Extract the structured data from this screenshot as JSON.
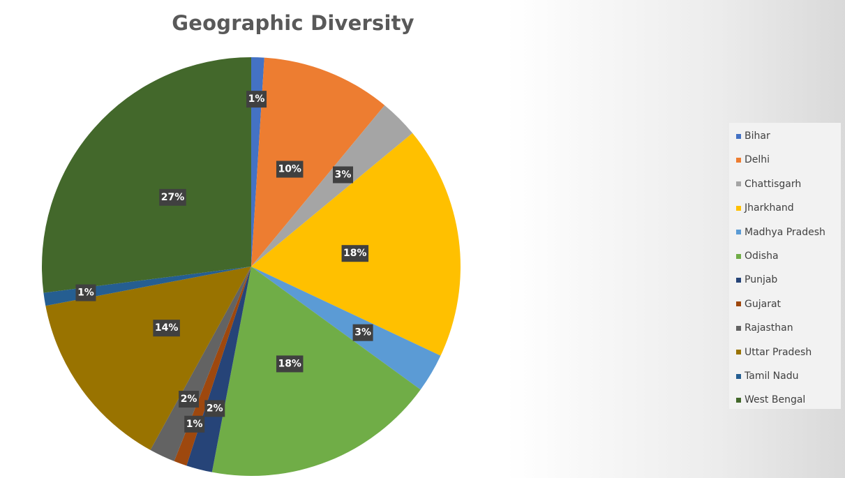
{
  "chart_data": {
    "type": "pie",
    "title": "Geographic Diversity",
    "legend_position": "right",
    "slices": [
      {
        "label": "Bihar",
        "value": 1,
        "display": "1%",
        "color": "#4472C4"
      },
      {
        "label": "Delhi",
        "value": 10,
        "display": "10%",
        "color": "#ED7D31"
      },
      {
        "label": "Chattisgarh",
        "value": 3,
        "display": "3%",
        "color": "#A5A5A5"
      },
      {
        "label": "Jharkhand",
        "value": 18,
        "display": "18%",
        "color": "#FFC000"
      },
      {
        "label": "Madhya Pradesh",
        "value": 3,
        "display": "3%",
        "color": "#5B9BD5"
      },
      {
        "label": "Odisha",
        "value": 18,
        "display": "18%",
        "color": "#70AD47"
      },
      {
        "label": "Punjab",
        "value": 2,
        "display": "2%",
        "color": "#264478"
      },
      {
        "label": "Gujarat",
        "value": 1,
        "display": "1%",
        "color": "#9E480E"
      },
      {
        "label": "Rajasthan",
        "value": 2,
        "display": "2%",
        "color": "#636363"
      },
      {
        "label": "Uttar Pradesh",
        "value": 14,
        "display": "14%",
        "color": "#997300"
      },
      {
        "label": "Tamil Nadu",
        "value": 1,
        "display": "1%",
        "color": "#255E91"
      },
      {
        "label": "West Bengal",
        "value": 27,
        "display": "27%",
        "color": "#43682B"
      }
    ]
  }
}
